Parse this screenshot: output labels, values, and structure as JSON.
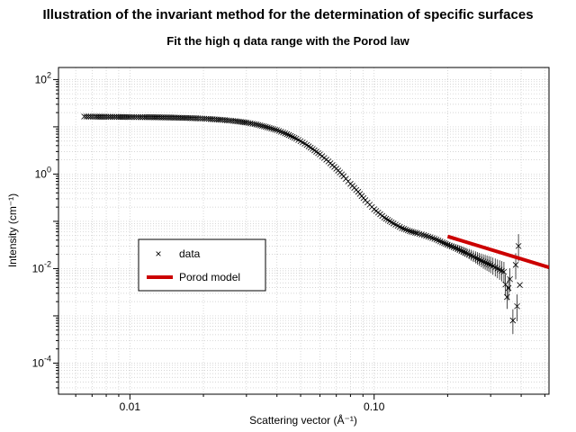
{
  "title": "Illustration of the invariant method for the determination of specific surfaces",
  "subtitle": "Fit the high q data range with the Porod law",
  "colors": {
    "data": "#000000",
    "model": "#cc0000",
    "grid": "#c8c8c8"
  },
  "chart_data": {
    "type": "scatter",
    "xlabel": "Scattering vector (Å⁻¹)",
    "ylabel": "Intensity (cm⁻¹)",
    "xscale": "log",
    "yscale": "log",
    "xlim": [
      0.0051,
      0.52
    ],
    "ylim": [
      2.2e-05,
      180
    ],
    "grid": true,
    "legend_placement": "center-left",
    "x_ticks": [
      {
        "value": 0.01,
        "label": "0.01"
      },
      {
        "value": 0.1,
        "label": "0.10"
      }
    ],
    "y_ticks": [
      {
        "value": 100,
        "base": "10",
        "exp": "2"
      },
      {
        "value": 1,
        "base": "10",
        "exp": "0"
      },
      {
        "value": 0.01,
        "base": "10",
        "exp": "-2"
      },
      {
        "value": 0.0001,
        "base": "10",
        "exp": "-4"
      }
    ],
    "series": [
      {
        "name": "data",
        "marker": "x",
        "points": [
          [
            0.0065,
            16.5
          ],
          [
            0.0072,
            16.4
          ],
          [
            0.008,
            16.3
          ],
          [
            0.009,
            16.2
          ],
          [
            0.01,
            16.1
          ],
          [
            0.0115,
            16.0
          ],
          [
            0.013,
            15.9
          ],
          [
            0.015,
            15.7
          ],
          [
            0.017,
            15.4
          ],
          [
            0.019,
            15.1
          ],
          [
            0.021,
            14.7
          ],
          [
            0.024,
            14.0
          ],
          [
            0.027,
            13.2
          ],
          [
            0.03,
            12.3
          ],
          [
            0.033,
            11.2
          ],
          [
            0.036,
            10.0
          ],
          [
            0.04,
            8.5
          ],
          [
            0.044,
            7.0
          ],
          [
            0.048,
            5.6
          ],
          [
            0.052,
            4.4
          ],
          [
            0.056,
            3.4
          ],
          [
            0.06,
            2.6
          ],
          [
            0.065,
            1.85
          ],
          [
            0.07,
            1.3
          ],
          [
            0.075,
            0.9
          ],
          [
            0.08,
            0.62
          ],
          [
            0.086,
            0.42
          ],
          [
            0.092,
            0.28
          ],
          [
            0.1,
            0.18
          ],
          [
            0.11,
            0.12
          ],
          [
            0.12,
            0.09
          ],
          [
            0.13,
            0.072
          ],
          [
            0.14,
            0.062
          ],
          [
            0.15,
            0.056
          ],
          [
            0.16,
            0.051
          ],
          [
            0.17,
            0.046
          ],
          [
            0.18,
            0.041
          ],
          [
            0.19,
            0.036
          ],
          [
            0.2,
            0.032
          ],
          [
            0.22,
            0.026
          ],
          [
            0.24,
            0.021
          ],
          [
            0.26,
            0.017
          ],
          [
            0.28,
            0.014
          ],
          [
            0.3,
            0.012
          ],
          [
            0.32,
            0.01
          ],
          [
            0.34,
            0.0085
          ],
          [
            0.35,
            0.0025
          ],
          [
            0.36,
            0.006
          ],
          [
            0.37,
            0.0008
          ],
          [
            0.38,
            0.012
          ],
          [
            0.385,
            0.0016
          ],
          [
            0.39,
            0.03
          ],
          [
            0.395,
            0.0045
          ]
        ]
      },
      {
        "name": "Porod model",
        "line": true,
        "points": [
          [
            0.2,
            0.048
          ],
          [
            0.52,
            0.0106
          ]
        ]
      }
    ],
    "legend": [
      {
        "symbol": "×",
        "label": "data"
      },
      {
        "symbol": "line",
        "label": "Porod model"
      }
    ]
  }
}
